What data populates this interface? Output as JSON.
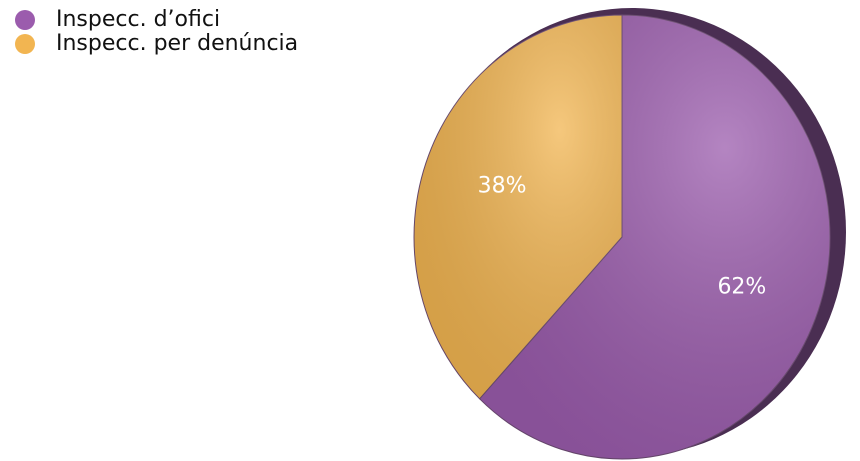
{
  "chart_data": {
    "type": "pie",
    "categories": [
      "Inspecc. d’ofici",
      "Inspecc. per denúncia"
    ],
    "values": [
      62,
      38
    ],
    "value_labels": [
      "62%",
      "38%"
    ],
    "colors": [
      "#9b5cad",
      "#f2b551"
    ],
    "legend": "top-left"
  }
}
